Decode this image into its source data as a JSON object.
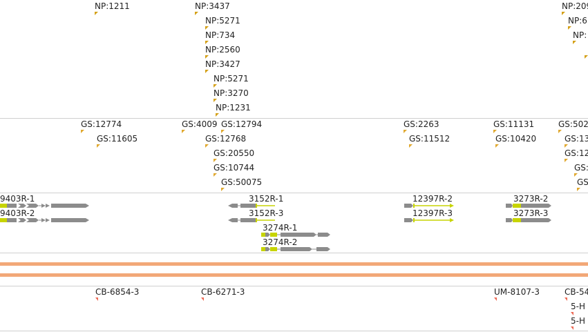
{
  "np_track": {
    "features": [
      {
        "label": "NP:1211"
      },
      {
        "label": "NP:3437"
      },
      {
        "label": "NP:5271"
      },
      {
        "label": "NP:734"
      },
      {
        "label": "NP:2560"
      },
      {
        "label": "NP:3427"
      },
      {
        "label": "NP:5271"
      },
      {
        "label": "NP:3270"
      },
      {
        "label": "NP:1231"
      },
      {
        "label": "NP:209"
      },
      {
        "label": "NP:6"
      },
      {
        "label": "NP:"
      }
    ]
  },
  "gs_track": {
    "features": [
      {
        "label": "GS:12774"
      },
      {
        "label": "GS:11605"
      },
      {
        "label": "GS:4009"
      },
      {
        "label": "GS:12794"
      },
      {
        "label": "GS:12768"
      },
      {
        "label": "GS:20550"
      },
      {
        "label": "GS:10744"
      },
      {
        "label": "GS:50075"
      },
      {
        "label": "GS:2263"
      },
      {
        "label": "GS:11512"
      },
      {
        "label": "GS:11131"
      },
      {
        "label": "GS:10420"
      },
      {
        "label": "GS:502"
      },
      {
        "label": "GS:13"
      },
      {
        "label": "GS:12"
      },
      {
        "label": "GS:"
      },
      {
        "label": "GS"
      }
    ]
  },
  "gene_track": {
    "features": [
      {
        "label": "9403R-1"
      },
      {
        "label": "9403R-2"
      },
      {
        "label": "3152R-1"
      },
      {
        "label": "3152R-3"
      },
      {
        "label": "3274R-1"
      },
      {
        "label": "3274R-2"
      },
      {
        "label": "12397R-2"
      },
      {
        "label": "12397R-3"
      },
      {
        "label": "3273R-2"
      },
      {
        "label": "3273R-3"
      }
    ]
  },
  "cb_track": {
    "features": [
      {
        "label": "CB-6854-3"
      },
      {
        "label": "CB-6271-3"
      },
      {
        "label": "UM-8107-3"
      },
      {
        "label": "CB-54"
      },
      {
        "label": "5-H"
      },
      {
        "label": "5-H"
      }
    ]
  }
}
